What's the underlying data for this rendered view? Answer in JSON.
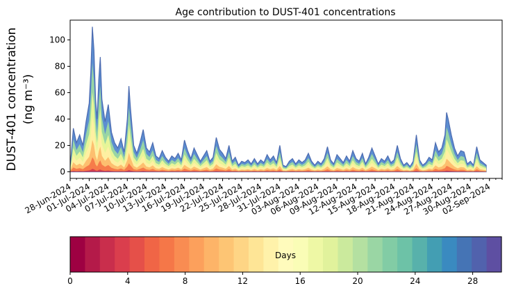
{
  "chart_data": {
    "type": "area",
    "title": "Age contribution to DUST-401 concentrations",
    "ylabel_line1": "DUST-401 concentration",
    "ylabel_line2": "(ng m⁻³)",
    "ylim": [
      -5,
      115
    ],
    "yticks": [
      0,
      20,
      40,
      60,
      80,
      100
    ],
    "x_start": "2024-06-28",
    "x_end": "2024-09-04",
    "xticks": [
      "28-Jun-2024",
      "01-Jul-2024",
      "04-Jul-2024",
      "07-Jul-2024",
      "10-Jul-2024",
      "13-Jul-2024",
      "16-Jul-2024",
      "19-Jul-2024",
      "22-Jul-2024",
      "25-Jul-2024",
      "28-Jul-2024",
      "31-Jul-2024",
      "03-Aug-2024",
      "06-Aug-2024",
      "09-Aug-2024",
      "12-Aug-2024",
      "15-Aug-2024",
      "18-Aug-2024",
      "21-Aug-2024",
      "24-Aug-2024",
      "27-Aug-2024",
      "30-Aug-2024",
      "02-Sep-2024"
    ],
    "total_series": {
      "name": "total",
      "points": [
        [
          "2024-06-28",
          3
        ],
        [
          "2024-06-28T12",
          33
        ],
        [
          "2024-06-29",
          22
        ],
        [
          "2024-06-29T12",
          28
        ],
        [
          "2024-06-30",
          20
        ],
        [
          "2024-06-30T12",
          38
        ],
        [
          "2024-07-01",
          52
        ],
        [
          "2024-07-01T06",
          75
        ],
        [
          "2024-07-01T12",
          110
        ],
        [
          "2024-07-01T18",
          92
        ],
        [
          "2024-07-02",
          55
        ],
        [
          "2024-07-02T06",
          40
        ],
        [
          "2024-07-02T12",
          70
        ],
        [
          "2024-07-02T18",
          87
        ],
        [
          "2024-07-03",
          55
        ],
        [
          "2024-07-03T12",
          38
        ],
        [
          "2024-07-04",
          51
        ],
        [
          "2024-07-04T12",
          30
        ],
        [
          "2024-07-05",
          22
        ],
        [
          "2024-07-05T12",
          18
        ],
        [
          "2024-07-06",
          25
        ],
        [
          "2024-07-06T12",
          15
        ],
        [
          "2024-07-07",
          40
        ],
        [
          "2024-07-07T06",
          65
        ],
        [
          "2024-07-07T12",
          48
        ],
        [
          "2024-07-08",
          20
        ],
        [
          "2024-07-08T12",
          14
        ],
        [
          "2024-07-09",
          22
        ],
        [
          "2024-07-09T12",
          32
        ],
        [
          "2024-07-10",
          18
        ],
        [
          "2024-07-10T12",
          15
        ],
        [
          "2024-07-11",
          22
        ],
        [
          "2024-07-11T12",
          12
        ],
        [
          "2024-07-12",
          10
        ],
        [
          "2024-07-12T12",
          16
        ],
        [
          "2024-07-13",
          11
        ],
        [
          "2024-07-13T12",
          8
        ],
        [
          "2024-07-14",
          12
        ],
        [
          "2024-07-14T12",
          10
        ],
        [
          "2024-07-15",
          14
        ],
        [
          "2024-07-15T12",
          9
        ],
        [
          "2024-07-16",
          24
        ],
        [
          "2024-07-16T12",
          16
        ],
        [
          "2024-07-17",
          10
        ],
        [
          "2024-07-17T12",
          18
        ],
        [
          "2024-07-18",
          13
        ],
        [
          "2024-07-18T12",
          8
        ],
        [
          "2024-07-19",
          12
        ],
        [
          "2024-07-19T12",
          16
        ],
        [
          "2024-07-20",
          8
        ],
        [
          "2024-07-20T12",
          11
        ],
        [
          "2024-07-21",
          26
        ],
        [
          "2024-07-21T12",
          17
        ],
        [
          "2024-07-22",
          14
        ],
        [
          "2024-07-22T12",
          10
        ],
        [
          "2024-07-23",
          20
        ],
        [
          "2024-07-23T12",
          8
        ],
        [
          "2024-07-24",
          11
        ],
        [
          "2024-07-24T12",
          5
        ],
        [
          "2024-07-25",
          8
        ],
        [
          "2024-07-25T12",
          7
        ],
        [
          "2024-07-26",
          9
        ],
        [
          "2024-07-26T12",
          6
        ],
        [
          "2024-07-27",
          10
        ],
        [
          "2024-07-27T12",
          6
        ],
        [
          "2024-07-28",
          9
        ],
        [
          "2024-07-28T12",
          7
        ],
        [
          "2024-07-29",
          13
        ],
        [
          "2024-07-29T12",
          9
        ],
        [
          "2024-07-30",
          12
        ],
        [
          "2024-07-30T12",
          7
        ],
        [
          "2024-07-31",
          20
        ],
        [
          "2024-07-31T12",
          5
        ],
        [
          "2024-08-01",
          4
        ],
        [
          "2024-08-01T12",
          8
        ],
        [
          "2024-08-02",
          10
        ],
        [
          "2024-08-02T12",
          6
        ],
        [
          "2024-08-03",
          9
        ],
        [
          "2024-08-03T12",
          7
        ],
        [
          "2024-08-04",
          9
        ],
        [
          "2024-08-04T12",
          14
        ],
        [
          "2024-08-05",
          8
        ],
        [
          "2024-08-05T12",
          5
        ],
        [
          "2024-08-06",
          8
        ],
        [
          "2024-08-06T12",
          6
        ],
        [
          "2024-08-07",
          10
        ],
        [
          "2024-08-07T12",
          19
        ],
        [
          "2024-08-08",
          9
        ],
        [
          "2024-08-08T12",
          6
        ],
        [
          "2024-08-09",
          13
        ],
        [
          "2024-08-09T12",
          10
        ],
        [
          "2024-08-10",
          7
        ],
        [
          "2024-08-10T12",
          12
        ],
        [
          "2024-08-11",
          8
        ],
        [
          "2024-08-11T12",
          16
        ],
        [
          "2024-08-12",
          10
        ],
        [
          "2024-08-12T12",
          8
        ],
        [
          "2024-08-13",
          14
        ],
        [
          "2024-08-13T12",
          6
        ],
        [
          "2024-08-14",
          11
        ],
        [
          "2024-08-14T12",
          18
        ],
        [
          "2024-08-15",
          12
        ],
        [
          "2024-08-15T12",
          6
        ],
        [
          "2024-08-16",
          10
        ],
        [
          "2024-08-16T12",
          8
        ],
        [
          "2024-08-17",
          12
        ],
        [
          "2024-08-17T12",
          7
        ],
        [
          "2024-08-18",
          9
        ],
        [
          "2024-08-18T12",
          20
        ],
        [
          "2024-08-19",
          10
        ],
        [
          "2024-08-19T12",
          5
        ],
        [
          "2024-08-20",
          7
        ],
        [
          "2024-08-20T12",
          4
        ],
        [
          "2024-08-21",
          8
        ],
        [
          "2024-08-21T12",
          28
        ],
        [
          "2024-08-22",
          9
        ],
        [
          "2024-08-22T12",
          5
        ],
        [
          "2024-08-23",
          7
        ],
        [
          "2024-08-23T12",
          11
        ],
        [
          "2024-08-24",
          9
        ],
        [
          "2024-08-24T12",
          22
        ],
        [
          "2024-08-25",
          15
        ],
        [
          "2024-08-25T12",
          18
        ],
        [
          "2024-08-26",
          28
        ],
        [
          "2024-08-26T06",
          45
        ],
        [
          "2024-08-26T12",
          40
        ],
        [
          "2024-08-27",
          28
        ],
        [
          "2024-08-27T12",
          18
        ],
        [
          "2024-08-28",
          12
        ],
        [
          "2024-08-28T12",
          16
        ],
        [
          "2024-08-29",
          15
        ],
        [
          "2024-08-29T12",
          6
        ],
        [
          "2024-08-30",
          8
        ],
        [
          "2024-08-30T12",
          5
        ],
        [
          "2024-08-31",
          19
        ],
        [
          "2024-08-31T12",
          9
        ],
        [
          "2024-09-01",
          7
        ],
        [
          "2024-09-01T12",
          5
        ]
      ]
    },
    "age_band_fractions": [
      0.02,
      0.1,
      0.22,
      0.38,
      0.55,
      0.75,
      1.0
    ],
    "colorbar": {
      "label": "Days",
      "vmin": 0,
      "vmax": 30,
      "ticks": [
        0,
        4,
        8,
        12,
        16,
        20,
        24,
        28
      ],
      "colors": [
        "#9e0142",
        "#b41a49",
        "#c92e4c",
        "#da3e4d",
        "#e55049",
        "#f06546",
        "#f57748",
        "#f98c52",
        "#fca05c",
        "#fdb468",
        "#fdc574",
        "#fed585",
        "#fee596",
        "#fff2aa",
        "#fffbbc",
        "#fafdb6",
        "#eef8a5",
        "#e1f29c",
        "#cbea9d",
        "#b4e0a1",
        "#9ad6a4",
        "#82cca5",
        "#6dc2a7",
        "#58b1ab",
        "#439eb3",
        "#3a8ac0",
        "#4574b5",
        "#5162ad",
        "#5e4fa2"
      ],
      "band_colors": [
        "#d33c4e",
        "#f67c4a",
        "#fdbf6f",
        "#fef0a2",
        "#e6f598",
        "#99d5a4",
        "#5c8ed1"
      ]
    }
  }
}
